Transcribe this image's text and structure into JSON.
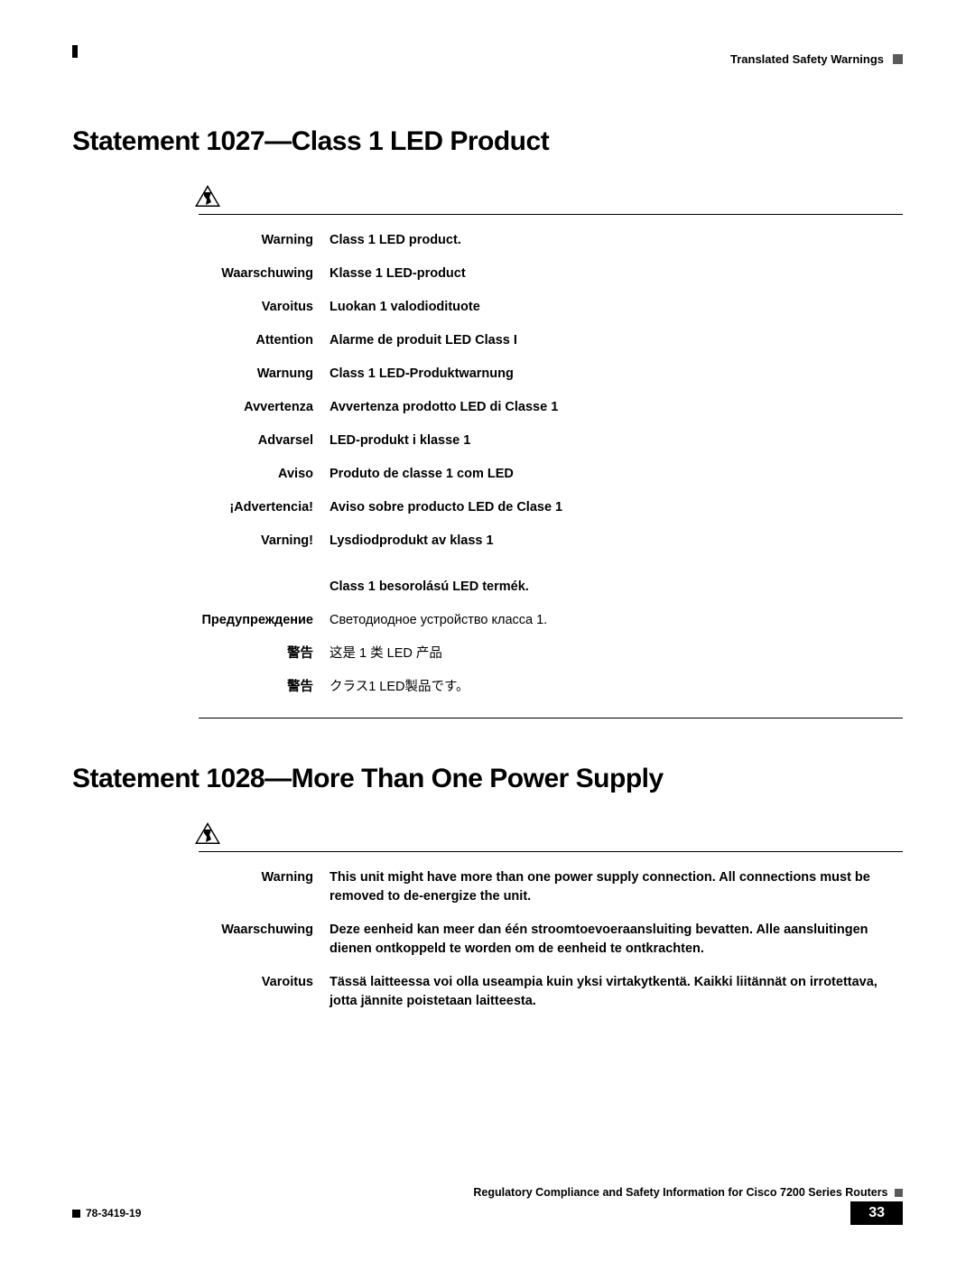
{
  "header": {
    "section_label": "Translated Safety Warnings"
  },
  "section1": {
    "title": "Statement 1027—Class 1 LED Product",
    "rows": [
      {
        "label": "Warning",
        "text": "Class 1 LED product.",
        "bold": true
      },
      {
        "label": "Waarschuwing",
        "text": "Klasse 1 LED-product",
        "bold": true
      },
      {
        "label": "Varoitus",
        "text": "Luokan 1 valodiodituote",
        "bold": true
      },
      {
        "label": "Attention",
        "text": "Alarme de produit LED Class I",
        "bold": true
      },
      {
        "label": "Warnung",
        "text": "Class 1 LED-Produktwarnung",
        "bold": true
      },
      {
        "label": "Avvertenza",
        "text": "Avvertenza prodotto LED di Classe 1",
        "bold": true
      },
      {
        "label": "Advarsel",
        "text": "LED-produkt i klasse 1",
        "bold": true
      },
      {
        "label": "Aviso",
        "text": "Produto de classe 1 com LED",
        "bold": true
      },
      {
        "label": "¡Advertencia!",
        "text": "Aviso sobre producto LED de Clase 1",
        "bold": true
      },
      {
        "label": "Varning!",
        "text": "Lysdiodprodukt av klass 1",
        "bold": true
      },
      {
        "label": "",
        "text": "Class 1 besorolású LED termék.",
        "bold": true
      },
      {
        "label": "Предупреждение",
        "text": "Светодиодное устройство класса 1.",
        "bold": false
      },
      {
        "label": "警告",
        "text": "这是 1 类 LED 产品",
        "bold": false
      },
      {
        "label": "警告",
        "text": "クラス1 LED製品です。",
        "bold": false
      }
    ]
  },
  "section2": {
    "title": "Statement 1028—More Than One Power Supply",
    "rows": [
      {
        "label": "Warning",
        "text": "This unit might have more than one power supply connection. All connections must be removed to de-energize the unit.",
        "bold": true
      },
      {
        "label": "Waarschuwing",
        "text": "Deze eenheid kan meer dan één stroomtoevoeraansluiting bevatten. Alle aansluitingen dienen ontkoppeld te worden om de eenheid te ontkrachten.",
        "bold": true
      },
      {
        "label": "Varoitus",
        "text": "Tässä laitteessa voi olla useampia kuin yksi virtakytkentä. Kaikki liitännät on irrotettava, jotta jännite poistetaan laitteesta.",
        "bold": true
      }
    ]
  },
  "footer": {
    "doc_title": "Regulatory Compliance and Safety Information for Cisco 7200 Series Routers",
    "doc_number": "78-3419-19",
    "page": "33"
  },
  "style": {
    "page_bg": "#ffffff",
    "text_color": "#000000",
    "heading_fontsize": 30,
    "body_fontsize": 14.5,
    "label_col_width": 145,
    "warning_indent": 140,
    "header_square_color": "#5a5a5a",
    "footer_badge_bg": "#000000",
    "footer_badge_color": "#ffffff"
  }
}
